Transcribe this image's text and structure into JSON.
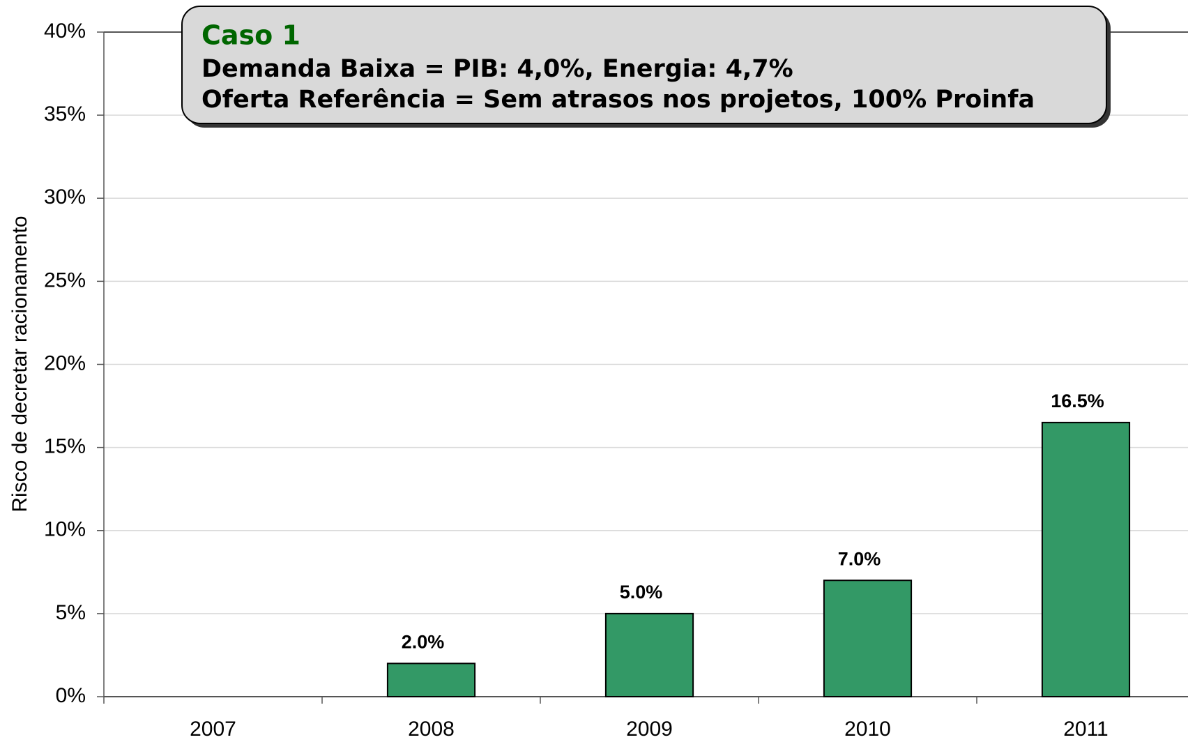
{
  "chart_data": {
    "type": "bar",
    "annotation": {
      "title": "Caso 1",
      "lines": [
        "Demanda Baixa = PIB: 4,0%, Energia: 4,7%",
        "Oferta Referência = Sem atrasos nos projetos, 100% Proinfa"
      ]
    },
    "y_label": "Risco de decretar racionamento",
    "categories": [
      "2007",
      "2008",
      "2009",
      "2010",
      "2011"
    ],
    "values": [
      null,
      2.0,
      5.0,
      7.0,
      16.5
    ],
    "value_labels": [
      null,
      "2.0%",
      "5.0%",
      "7.0%",
      "16.5%"
    ],
    "color": "#339966",
    "ylim": [
      0,
      40
    ],
    "yticks": [
      {
        "value": 0,
        "label": "0%"
      },
      {
        "value": 5,
        "label": "5%"
      },
      {
        "value": 10,
        "label": "10%"
      },
      {
        "value": 15,
        "label": "15%"
      },
      {
        "value": 20,
        "label": "20%"
      },
      {
        "value": 25,
        "label": "25%"
      },
      {
        "value": 30,
        "label": "30%"
      },
      {
        "value": 35,
        "label": "35%"
      },
      {
        "value": 40,
        "label": "40%"
      }
    ],
    "grid": true
  }
}
